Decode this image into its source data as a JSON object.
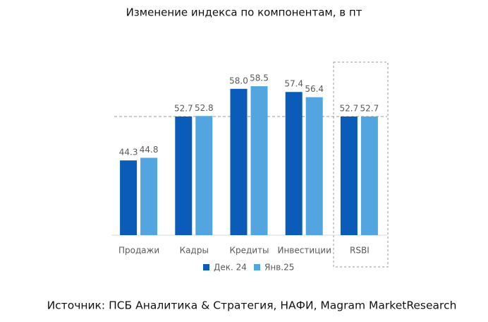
{
  "chart_data": {
    "type": "bar",
    "title": "Изменение индекса по компонентам, в пт",
    "categories": [
      "Продажи",
      "Кадры",
      "Кредиты",
      "Инвестиции",
      "RSBI"
    ],
    "series": [
      {
        "name": "Дек. 24",
        "color": "#0b5cb8",
        "values": [
          44.3,
          52.7,
          58,
          57.4,
          52.7
        ],
        "value_labels": [
          "44.3",
          "52.7",
          "58.0",
          "57.4",
          "52.7"
        ]
      },
      {
        "name": "Янв.25",
        "color": "#52a5de",
        "values": [
          44.8,
          52.8,
          58.5,
          56.4,
          52.7
        ],
        "value_labels": [
          "44.8",
          "52.8",
          "58.5",
          "56.4",
          "52.7"
        ]
      }
    ],
    "ylim": [
      30,
      65
    ],
    "source": "Источник: ПСБ Аналитика & Стратегия, НАФИ, Magram MarketResearch"
  }
}
